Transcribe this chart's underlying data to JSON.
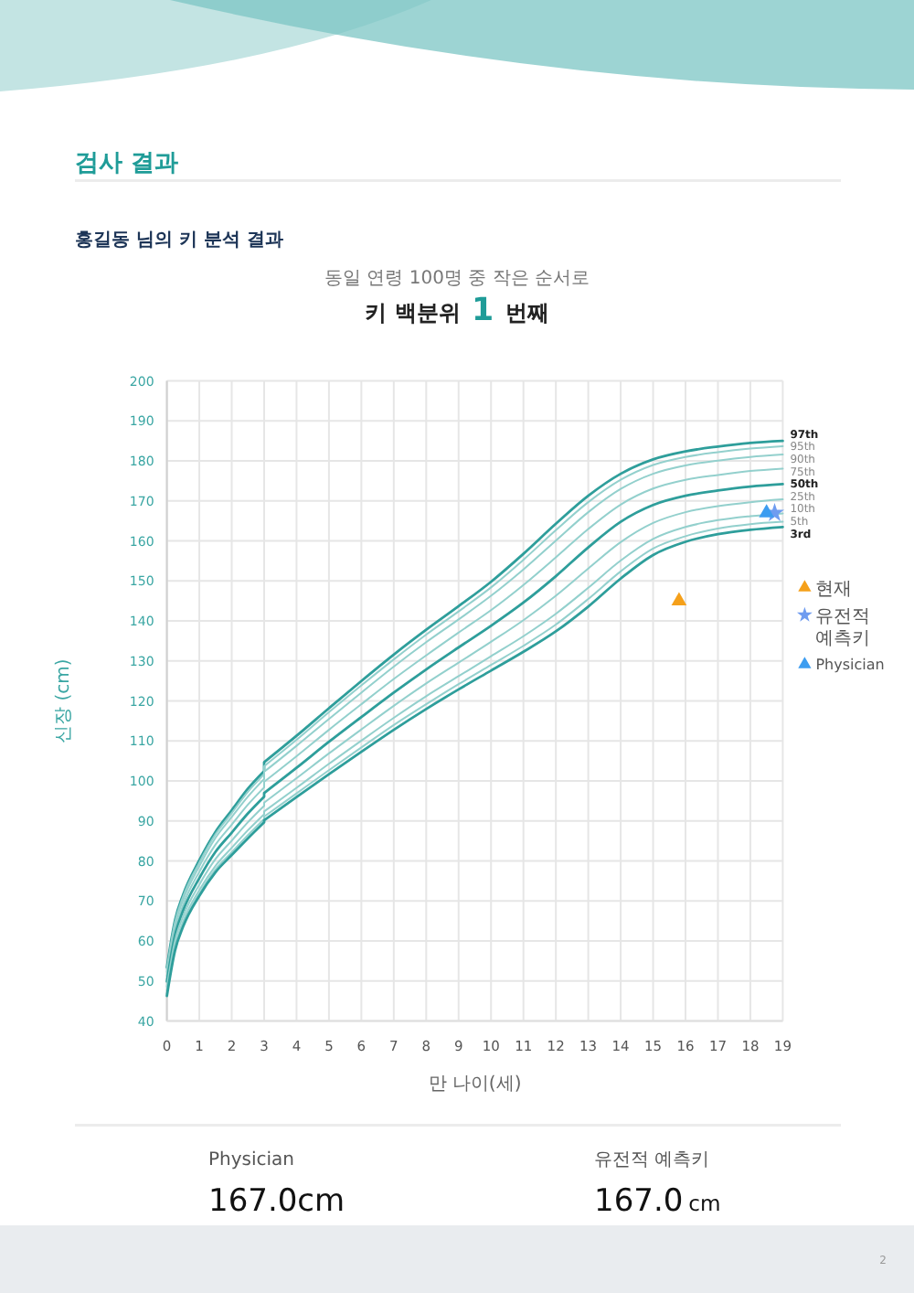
{
  "chart_data": {
    "type": "line",
    "title": "홍길동 님의 키 분석 결과",
    "subtitle": "동일 연령 100명 중 작은 순서로",
    "xlabel": "만 나이(세)",
    "ylabel": "신장 (cm)",
    "xlim": [
      0,
      19
    ],
    "xticks": [
      0,
      1,
      2,
      3,
      4,
      5,
      6,
      7,
      8,
      9,
      10,
      11,
      12,
      13,
      14,
      15,
      16,
      17,
      18,
      19
    ],
    "ylim": [
      40,
      200
    ],
    "yticks": [
      40,
      50,
      60,
      70,
      80,
      90,
      100,
      110,
      120,
      130,
      140,
      150,
      160,
      170,
      180,
      190,
      200
    ],
    "grid": true,
    "legend": "right",
    "line_style": "solid",
    "annotations": [
      "검사 결과",
      "키 백분위 1 번째",
      "Physician",
      "167.0cm",
      "유전적 예측키",
      "167.0 cm",
      "2"
    ],
    "series": [
      {
        "name": "97th",
        "color": "#2e9e9b",
        "x": [
          0,
          0.25,
          0.5,
          1,
          1.5,
          2,
          2.5,
          3,
          3,
          4,
          5,
          6,
          7,
          8,
          9,
          10,
          11,
          12,
          13,
          14,
          15,
          16,
          17,
          18,
          19
        ],
        "values": [
          53.4,
          65.2,
          71.6,
          80.2,
          87.3,
          92.7,
          98.1,
          102.5,
          104.7,
          111.3,
          118.2,
          125.0,
          131.6,
          137.8,
          143.7,
          149.8,
          156.8,
          164.3,
          171.3,
          176.8,
          180.4,
          182.4,
          183.6,
          184.5,
          185.0
        ]
      },
      {
        "name": "95th",
        "color": "#93d0cd",
        "x": [
          0,
          0.25,
          0.5,
          1,
          1.5,
          2,
          2.5,
          3,
          3,
          4,
          5,
          6,
          7,
          8,
          9,
          10,
          11,
          12,
          13,
          14,
          15,
          16,
          17,
          18,
          19
        ],
        "values": [
          53.0,
          64.7,
          71.1,
          79.6,
          86.7,
          92.0,
          97.3,
          101.7,
          103.7,
          110.3,
          117.2,
          123.9,
          130.4,
          136.6,
          142.4,
          148.4,
          155.3,
          162.7,
          169.7,
          175.3,
          179.0,
          181.0,
          182.2,
          183.1,
          183.7
        ]
      },
      {
        "name": "90th",
        "color": "#93d0cd",
        "x": [
          0,
          0.25,
          0.5,
          1,
          1.5,
          2,
          2.5,
          3,
          3,
          4,
          5,
          6,
          7,
          8,
          9,
          10,
          11,
          12,
          13,
          14,
          15,
          16,
          17,
          18,
          19
        ],
        "values": [
          52.3,
          64.0,
          70.3,
          78.7,
          85.8,
          91.0,
          96.1,
          100.5,
          102.3,
          108.8,
          115.5,
          122.1,
          128.6,
          134.7,
          140.4,
          146.3,
          152.9,
          160.1,
          167.2,
          173.0,
          176.8,
          178.9,
          180.1,
          181.0,
          181.6
        ]
      },
      {
        "name": "75th",
        "color": "#93d0cd",
        "x": [
          0,
          0.25,
          0.5,
          1,
          1.5,
          2,
          2.5,
          3,
          3,
          4,
          5,
          6,
          7,
          8,
          9,
          10,
          11,
          12,
          13,
          14,
          15,
          16,
          17,
          18,
          19
        ],
        "values": [
          51.2,
          62.7,
          69.0,
          77.3,
          84.1,
          89.1,
          94.1,
          98.4,
          99.8,
          106.2,
          112.8,
          119.2,
          125.5,
          131.4,
          137.1,
          142.7,
          149.0,
          155.9,
          163.0,
          169.1,
          173.1,
          175.3,
          176.5,
          177.5,
          178.1
        ]
      },
      {
        "name": "50th",
        "color": "#2e9e9b",
        "x": [
          0,
          0.25,
          0.5,
          1,
          1.5,
          2,
          2.5,
          3,
          3,
          4,
          5,
          6,
          7,
          8,
          9,
          10,
          11,
          12,
          13,
          14,
          15,
          16,
          17,
          18,
          19
        ],
        "values": [
          49.9,
          61.4,
          67.6,
          75.7,
          82.3,
          87.1,
          91.9,
          96.1,
          97.0,
          103.3,
          109.8,
          116.0,
          122.1,
          127.9,
          133.4,
          138.8,
          144.6,
          151.2,
          158.4,
          164.8,
          169.0,
          171.3,
          172.6,
          173.6,
          174.2
        ]
      },
      {
        "name": "25th",
        "color": "#93d0cd",
        "x": [
          0,
          0.25,
          0.5,
          1,
          1.5,
          2,
          2.5,
          3,
          3,
          4,
          5,
          6,
          7,
          8,
          9,
          10,
          11,
          12,
          13,
          14,
          15,
          16,
          17,
          18,
          19
        ],
        "values": [
          48.6,
          60.1,
          66.2,
          74.1,
          80.5,
          85.1,
          89.7,
          93.8,
          94.6,
          100.7,
          106.9,
          112.9,
          118.8,
          124.4,
          129.6,
          134.8,
          140.2,
          146.3,
          153.1,
          159.7,
          164.5,
          167.2,
          168.7,
          169.7,
          170.4
        ]
      },
      {
        "name": "10th",
        "color": "#93d0cd",
        "x": [
          0,
          0.25,
          0.5,
          1,
          1.5,
          2,
          2.5,
          3,
          3,
          4,
          5,
          6,
          7,
          8,
          9,
          10,
          11,
          12,
          13,
          14,
          15,
          16,
          17,
          18,
          19
        ],
        "values": [
          47.5,
          58.8,
          64.9,
          72.7,
          78.8,
          83.3,
          87.7,
          91.7,
          92.4,
          98.3,
          104.3,
          110.1,
          115.8,
          121.2,
          126.2,
          131.2,
          136.2,
          141.8,
          148.3,
          155.1,
          160.5,
          163.5,
          165.2,
          166.2,
          166.9
        ]
      },
      {
        "name": "5th",
        "color": "#93d0cd",
        "x": [
          0,
          0.25,
          0.5,
          1,
          1.5,
          2,
          2.5,
          3,
          3,
          4,
          5,
          6,
          7,
          8,
          9,
          10,
          11,
          12,
          13,
          14,
          15,
          16,
          17,
          18,
          19
        ],
        "values": [
          46.8,
          58.1,
          64.1,
          71.8,
          77.9,
          82.2,
          86.5,
          90.5,
          91.1,
          96.9,
          102.7,
          108.4,
          114.0,
          119.2,
          124.2,
          129.0,
          133.8,
          139.1,
          145.5,
          152.4,
          158.1,
          161.2,
          163.1,
          164.2,
          164.8
        ]
      },
      {
        "name": "3rd",
        "color": "#2e9e9b",
        "x": [
          0,
          0.25,
          0.5,
          1,
          1.5,
          2,
          2.5,
          3,
          3,
          4,
          5,
          6,
          7,
          8,
          9,
          10,
          11,
          12,
          13,
          14,
          15,
          16,
          17,
          18,
          19
        ],
        "values": [
          46.3,
          57.6,
          63.6,
          71.3,
          77.2,
          81.5,
          85.7,
          89.7,
          90.2,
          96.0,
          101.7,
          107.3,
          112.8,
          118.0,
          122.9,
          127.6,
          132.3,
          137.4,
          143.6,
          150.6,
          156.5,
          159.8,
          161.7,
          162.8,
          163.5
        ]
      },
      {
        "name": "현재",
        "type": "scatter",
        "marker": "triangle",
        "color": "#f5a01a",
        "x": [
          15.8
        ],
        "values": [
          145
        ]
      },
      {
        "name": "유전적 예측키",
        "type": "scatter",
        "marker": "star",
        "color": "#6f9cf0",
        "x": [
          18.75
        ],
        "values": [
          167
        ]
      },
      {
        "name": "Physician",
        "type": "scatter",
        "marker": "triangle",
        "color": "#3d9df0",
        "x": [
          18.5
        ],
        "values": [
          167
        ]
      }
    ]
  }
}
